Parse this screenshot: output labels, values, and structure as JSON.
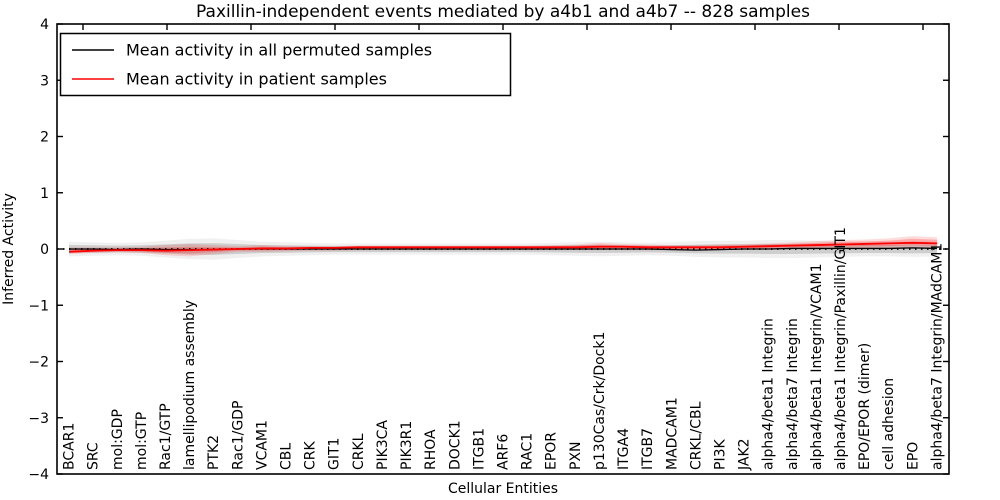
{
  "chart_data": {
    "type": "line",
    "title": "Paxillin-independent events mediated by a4b1 and a4b7 -- 828 samples",
    "xlabel": "Cellular Entities",
    "ylabel": "Inferred Activity",
    "ylim": [
      -4,
      4
    ],
    "yticks": [
      4,
      3,
      2,
      1,
      0,
      -1,
      -2,
      -3,
      -4
    ],
    "grid": false,
    "legend_position": "upper left",
    "zero_line": {
      "style": "dotted",
      "color": "#000000",
      "y": 0
    },
    "categories": [
      "BCAR1",
      "SRC",
      "mol:GDP",
      "mol:GTP",
      "Rac1/GTP",
      "lamellipodium assembly",
      "PTK2",
      "Rac1/GDP",
      "VCAM1",
      "CBL",
      "CRK",
      "GIT1",
      "CRKL",
      "PIK3CA",
      "PIK3R1",
      "RHOA",
      "DOCK1",
      "ITGB1",
      "ARF6",
      "RAC1",
      "EPOR",
      "PXN",
      "p130Cas/Crk/Dock1",
      "ITGA4",
      "ITGB7",
      "MADCAM1",
      "CRKL/CBL",
      "PI3K",
      "JAK2",
      "alpha4/beta1 Integrin",
      "alpha4/beta7 Integrin",
      "alpha4/beta1 Integrin/VCAM1",
      "alpha4/beta1 Integrin/Paxillin/GIT1",
      "EPO/EPOR (dimer)",
      "cell adhesion",
      "EPO",
      "alpha4/beta7 Integrin/MAdCAM1"
    ],
    "series": [
      {
        "name": "Mean activity in all permuted samples",
        "color": "#000000",
        "values": [
          0,
          0,
          -0.01,
          0,
          -0.01,
          -0.01,
          -0.01,
          0,
          0,
          0,
          0,
          0,
          0,
          0,
          0,
          0,
          0,
          0,
          0,
          0,
          0,
          0,
          0,
          0,
          0,
          -0.01,
          -0.02,
          -0.01,
          0,
          0,
          0.01,
          0.01,
          0.01,
          0.01,
          0.01,
          0.02,
          0.01
        ]
      },
      {
        "name": "Mean activity in patient samples",
        "color": "#ff0000",
        "values": [
          -0.05,
          -0.03,
          -0.02,
          -0.02,
          -0.03,
          -0.02,
          -0.01,
          0,
          0.01,
          0.01,
          0.02,
          0.02,
          0.03,
          0.03,
          0.03,
          0.03,
          0.03,
          0.03,
          0.03,
          0.03,
          0.03,
          0.03,
          0.04,
          0.04,
          0.03,
          0.03,
          0.03,
          0.03,
          0.04,
          0.05,
          0.06,
          0.07,
          0.08,
          0.09,
          0.1,
          0.11,
          0.1
        ]
      }
    ],
    "bands": [
      {
        "name": "permuted-samples-range",
        "color": "#000000",
        "opacity": 0.06,
        "lower": [
          -0.13,
          -0.12,
          -0.11,
          -0.12,
          -0.15,
          -0.18,
          -0.19,
          -0.16,
          -0.13,
          -0.12,
          -0.11,
          -0.1,
          -0.1,
          -0.1,
          -0.1,
          -0.1,
          -0.1,
          -0.1,
          -0.1,
          -0.1,
          -0.11,
          -0.12,
          -0.13,
          -0.12,
          -0.11,
          -0.12,
          -0.14,
          -0.15,
          -0.15,
          -0.16,
          -0.16,
          -0.15,
          -0.14,
          -0.13,
          -0.13,
          -0.14,
          -0.13
        ],
        "upper": [
          0.13,
          0.12,
          0.11,
          0.12,
          0.15,
          0.18,
          0.19,
          0.16,
          0.13,
          0.12,
          0.11,
          0.1,
          0.1,
          0.1,
          0.1,
          0.1,
          0.1,
          0.1,
          0.1,
          0.1,
          0.11,
          0.12,
          0.13,
          0.12,
          0.11,
          0.12,
          0.14,
          0.15,
          0.15,
          0.16,
          0.16,
          0.15,
          0.14,
          0.13,
          0.13,
          0.14,
          0.13
        ]
      },
      {
        "name": "patient-samples-range",
        "color": "#ff0000",
        "opacity": 0.14,
        "lower": [
          -0.09,
          -0.07,
          -0.06,
          -0.07,
          -0.11,
          -0.13,
          -0.09,
          -0.05,
          -0.05,
          -0.04,
          -0.03,
          -0.03,
          -0.02,
          -0.02,
          -0.02,
          -0.02,
          -0.02,
          -0.02,
          -0.02,
          -0.02,
          -0.02,
          -0.02,
          -0.02,
          -0.02,
          -0.02,
          -0.02,
          -0.02,
          -0.02,
          -0.01,
          -0.01,
          0,
          0,
          0.01,
          0.01,
          0.01,
          0.02,
          0.01
        ],
        "upper": [
          0.03,
          0.03,
          0.03,
          0.04,
          0.07,
          0.09,
          0.07,
          0.05,
          0.07,
          0.05,
          0.05,
          0.05,
          0.06,
          0.06,
          0.06,
          0.06,
          0.06,
          0.06,
          0.06,
          0.06,
          0.07,
          0.08,
          0.11,
          0.09,
          0.08,
          0.07,
          0.07,
          0.08,
          0.09,
          0.1,
          0.12,
          0.14,
          0.16,
          0.17,
          0.19,
          0.23,
          0.21
        ]
      }
    ]
  }
}
